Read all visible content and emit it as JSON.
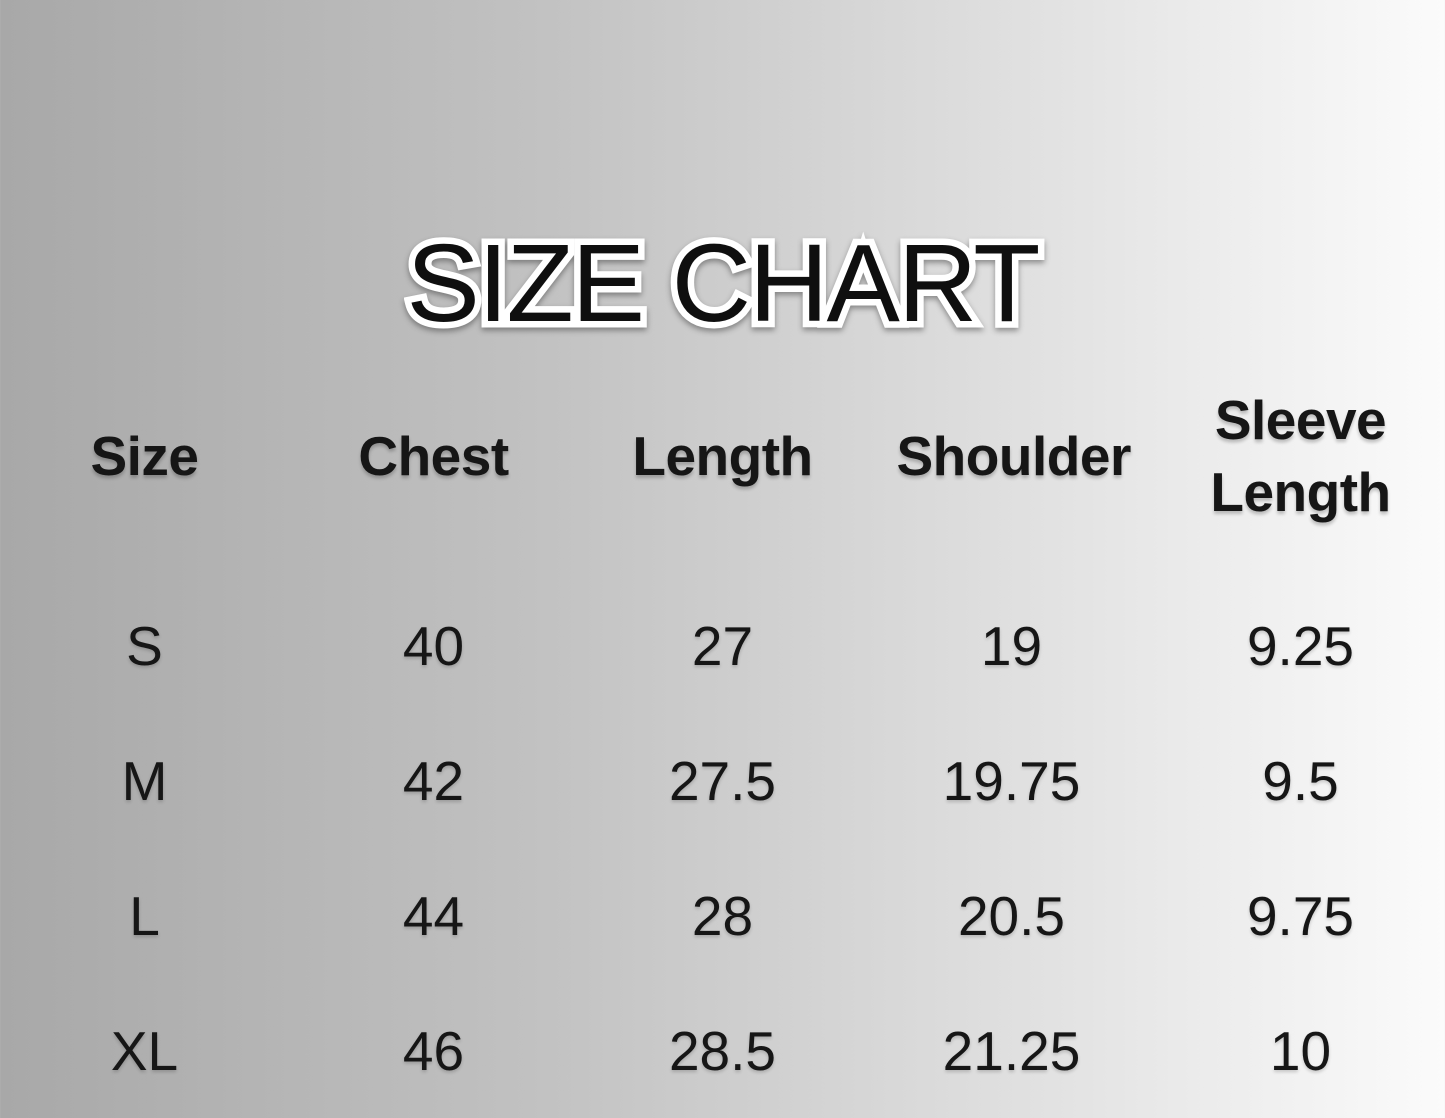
{
  "title": "SIZE CHART",
  "chart_data": {
    "type": "table",
    "title": "SIZE CHART",
    "columns": [
      "Size",
      "Chest",
      "Length",
      "Shoulder",
      "Sleeve Length"
    ],
    "rows": [
      [
        "S",
        "40",
        "27",
        "19",
        "9.25"
      ],
      [
        "M",
        "42",
        "27.5",
        "19.75",
        "9.5"
      ],
      [
        "L",
        "44",
        "28",
        "20.5",
        "9.75"
      ],
      [
        "XL",
        "46",
        "28.5",
        "21.25",
        "10"
      ]
    ]
  },
  "colors": {
    "background_gradient_start": "#a8a8a8",
    "background_gradient_end": "#fbfbfb",
    "text": "#161616",
    "title_fill": "#0f0f0f",
    "title_outline": "#ffffff"
  }
}
